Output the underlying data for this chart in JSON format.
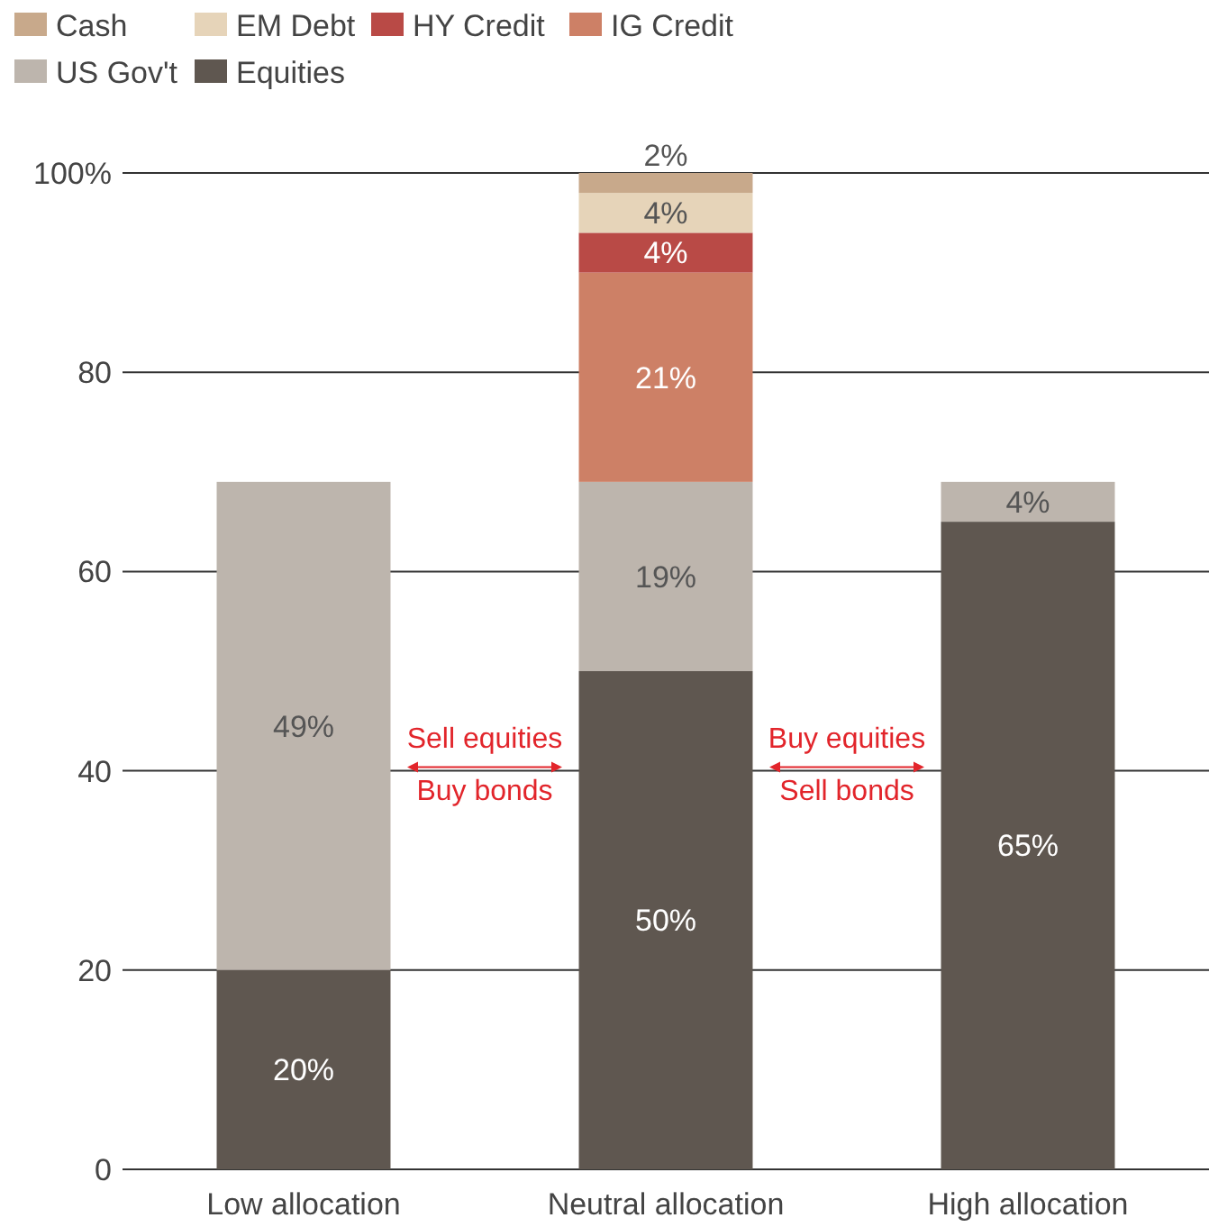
{
  "chart_data": {
    "type": "bar",
    "stacked": true,
    "categories": [
      "Low allocation",
      "Neutral allocation",
      "High allocation"
    ],
    "series": [
      {
        "name": "Equities",
        "color": "#5f5750",
        "values": [
          20,
          50,
          65
        ],
        "value_labels": [
          "20%",
          "50%",
          "65%"
        ]
      },
      {
        "name": "US Gov't",
        "color": "#bdb5ad",
        "values": [
          49,
          19,
          4
        ],
        "value_labels": [
          "49%",
          "19%",
          "4%"
        ]
      },
      {
        "name": "IG Credit",
        "color": "#cd8066",
        "values": [
          null,
          21,
          null
        ],
        "value_labels": [
          null,
          "21%",
          null
        ]
      },
      {
        "name": "HY Credit",
        "color": "#b94a46",
        "values": [
          null,
          4,
          null
        ],
        "value_labels": [
          null,
          "4%",
          null
        ]
      },
      {
        "name": "EM Debt",
        "color": "#e6d4b9",
        "values": [
          null,
          4,
          null
        ],
        "value_labels": [
          null,
          "4%",
          null
        ]
      },
      {
        "name": "Cash",
        "color": "#c8a98b",
        "values": [
          null,
          2,
          null
        ],
        "value_labels": [
          null,
          "2%",
          null
        ]
      }
    ],
    "ylim": [
      0,
      100
    ],
    "yticks": [
      0,
      20,
      40,
      60,
      80,
      {
        "value": 100,
        "label": "100%"
      }
    ],
    "grid": "y",
    "legend": "top left",
    "annotations": [
      "Sell equities\nBuy bonds",
      "Buy equities\nSell bonds"
    ]
  }
}
